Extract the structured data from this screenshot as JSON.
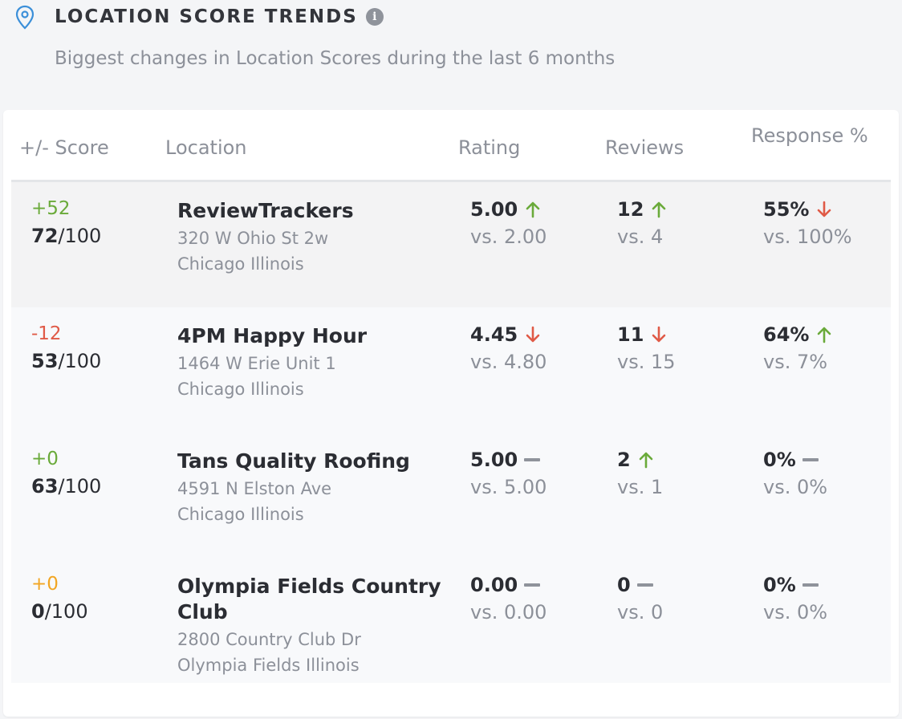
{
  "header": {
    "title": "LOCATION SCORE TRENDS",
    "info_icon": "info-icon",
    "subtitle": "Biggest changes in Location Scores during the last 6 months"
  },
  "table": {
    "columns": {
      "score": "+/- Score",
      "location": "Location",
      "rating": "Rating",
      "reviews": "Reviews",
      "response": "Response %"
    },
    "rows": [
      {
        "delta": "+52",
        "score": "72",
        "score_max": "/100",
        "name": "ReviewTrackers",
        "address1": "320 W Ohio St 2w",
        "address2": "Chicago Illinois",
        "rating": "5.00",
        "rating_trend": "up",
        "rating_vs": "vs. 2.00",
        "reviews": "12",
        "reviews_trend": "up",
        "reviews_vs": "vs. 4",
        "response": "55%",
        "response_trend": "down",
        "response_vs": "vs. 100%"
      },
      {
        "delta": "-12",
        "score": "53",
        "score_max": "/100",
        "name": "4PM Happy Hour",
        "address1": "1464 W Erie Unit 1",
        "address2": "Chicago Illinois",
        "rating": "4.45",
        "rating_trend": "down",
        "rating_vs": "vs. 4.80",
        "reviews": "11",
        "reviews_trend": "down",
        "reviews_vs": "vs. 15",
        "response": "64%",
        "response_trend": "up",
        "response_vs": "vs. 7%"
      },
      {
        "delta": "+0",
        "score": "63",
        "score_max": "/100",
        "name": "Tans Quality Roofing",
        "address1": "4591 N Elston Ave",
        "address2": "Chicago Illinois",
        "rating": "5.00",
        "rating_trend": "flat",
        "rating_vs": "vs. 5.00",
        "reviews": "2",
        "reviews_trend": "up",
        "reviews_vs": "vs. 1",
        "response": "0%",
        "response_trend": "flat",
        "response_vs": "vs. 0%"
      },
      {
        "delta": "+0",
        "score": "0",
        "score_max": "/100",
        "name": "Olympia Fields Country Club",
        "address1": "2800 Country Club Dr",
        "address2": "Olympia Fields Illinois",
        "rating": "0.00",
        "rating_trend": "flat",
        "rating_vs": "vs. 0.00",
        "reviews": "0",
        "reviews_trend": "flat",
        "reviews_vs": "vs. 0",
        "response": "0%",
        "response_trend": "flat",
        "response_vs": "vs. 0%"
      }
    ]
  },
  "colors": {
    "up": "#6aaa3a",
    "down": "#e05a47",
    "neutral_delta": "#f2a623",
    "flat": "#8f939b",
    "pin": "#3b8fd9"
  }
}
